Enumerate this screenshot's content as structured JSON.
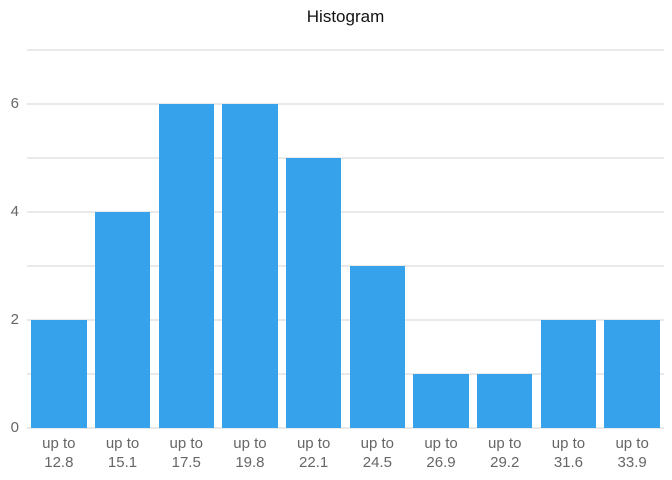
{
  "chart_data": {
    "type": "bar",
    "title": "Histogram",
    "categories": [
      "up to 12.8",
      "up to 15.1",
      "up to 17.5",
      "up to 19.8",
      "up to 22.1",
      "up to 24.5",
      "up to 26.9",
      "up to 29.2",
      "up to 31.6",
      "up to 33.9"
    ],
    "values": [
      2,
      4,
      6,
      6,
      5,
      3,
      1,
      1,
      2,
      2
    ],
    "xlabel": "",
    "ylabel": "",
    "ylim": [
      0,
      7
    ],
    "grid": true,
    "grid_step": 1,
    "yticks": [
      0,
      2,
      4,
      6
    ],
    "legend_position": "none",
    "bar_color": "#36A2EB",
    "gridline_color": "#E9E9E9",
    "tick_label_color": "#666666",
    "title_color": "#111111"
  }
}
